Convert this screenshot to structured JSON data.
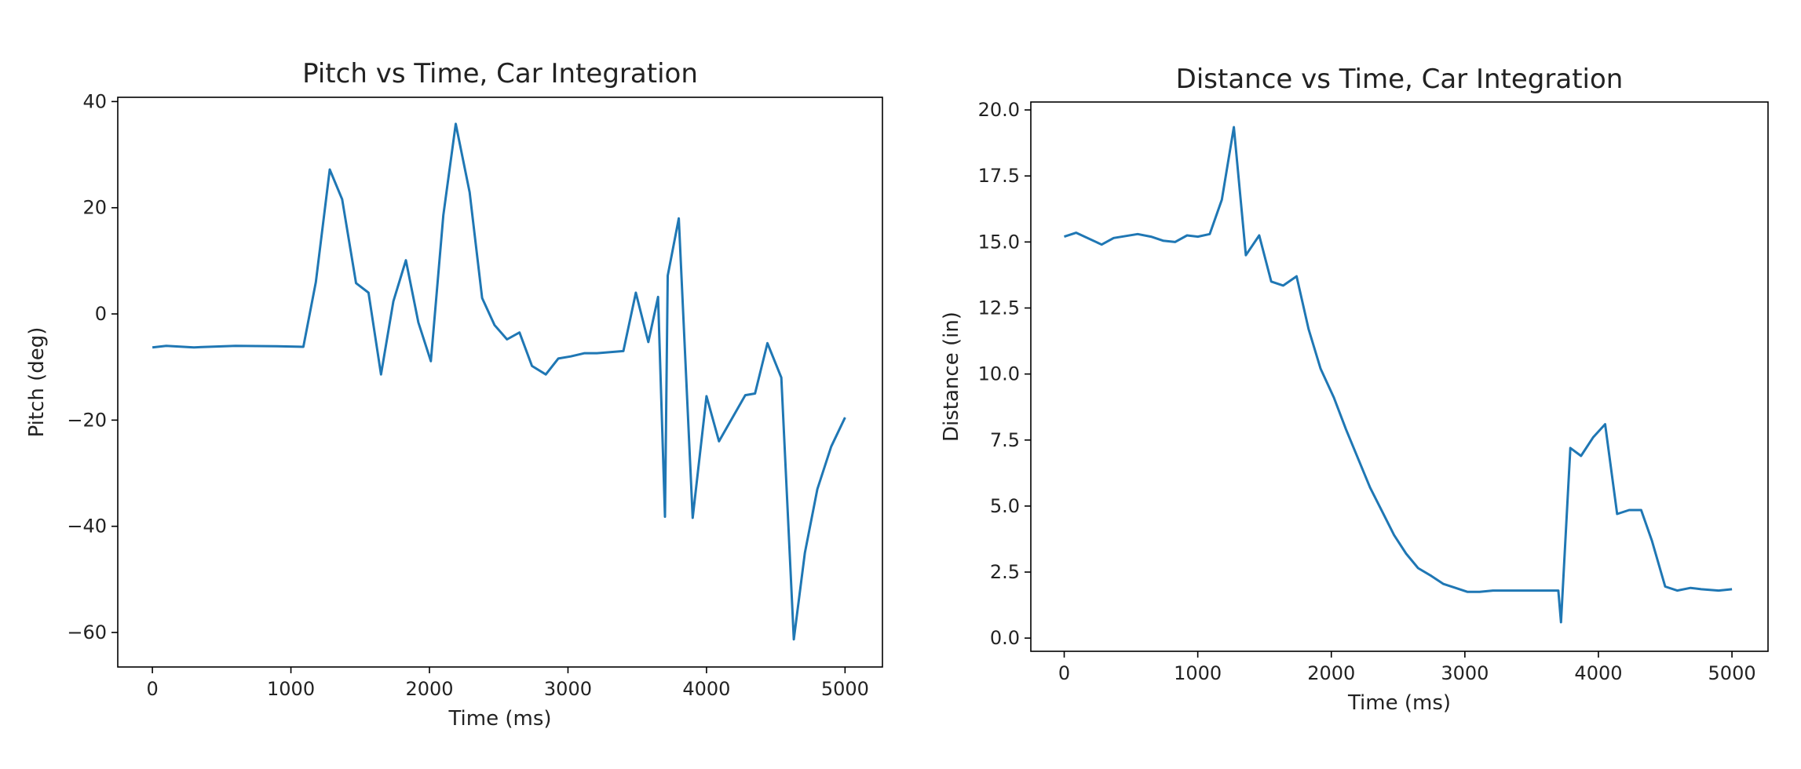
{
  "chart_data": [
    {
      "type": "line",
      "title": "Pitch vs Time, Car Integration",
      "xlabel": "Time (ms)",
      "ylabel": "Pitch (deg)",
      "xlim": [
        -250,
        5270
      ],
      "ylim": [
        -66.5,
        40.8
      ],
      "xticks": [
        0,
        1000,
        2000,
        3000,
        4000,
        5000
      ],
      "yticks": [
        -60,
        -40,
        -20,
        0,
        20,
        40
      ],
      "xtick_labels": [
        "0",
        "1000",
        "2000",
        "3000",
        "4000",
        "5000"
      ],
      "ytick_labels": [
        "−60",
        "−40",
        "−20",
        "0",
        "20",
        "40"
      ],
      "series": [
        {
          "color": "#1f77b4",
          "x": [
            0,
            100,
            300,
            600,
            900,
            1090,
            1180,
            1280,
            1370,
            1470,
            1560,
            1650,
            1740,
            1830,
            1920,
            2010,
            2100,
            2190,
            2290,
            2380,
            2470,
            2560,
            2650,
            2740,
            2840,
            2930,
            3020,
            3120,
            3210,
            3400,
            3490,
            3580,
            3650,
            3700,
            3720,
            3800,
            3900,
            4000,
            4090,
            4280,
            4350,
            4440,
            4540,
            4630,
            4710,
            4800,
            4900,
            5000
          ],
          "y": [
            -6.3,
            -6,
            -6.3,
            -6,
            -6.1,
            -6.2,
            6,
            27.2,
            21.6,
            5.8,
            4,
            -11.4,
            2.4,
            10.1,
            -1.6,
            -8.9,
            18.6,
            35.8,
            22.9,
            3,
            -2.1,
            -4.8,
            -3.5,
            -9.8,
            -11.4,
            -8.4,
            -8,
            -7.4,
            -7.4,
            -7,
            4,
            -5.3,
            3.2,
            -38.2,
            7.2,
            18,
            -38.4,
            -15.5,
            -24,
            -15.3,
            -15,
            -5.5,
            -12,
            -61.3,
            -45,
            -33,
            -25,
            -19.5
          ]
        }
      ]
    },
    {
      "type": "line",
      "title": "Distance vs Time, Car Integration",
      "xlabel": "Time (ms)",
      "ylabel": "Distance (in)",
      "xlim": [
        -250,
        5270
      ],
      "ylim": [
        -0.5,
        20.3
      ],
      "xticks": [
        0,
        1000,
        2000,
        3000,
        4000,
        5000
      ],
      "yticks": [
        0,
        2.5,
        5,
        7.5,
        10,
        12.5,
        15,
        17.5,
        20
      ],
      "xtick_labels": [
        "0",
        "1000",
        "2000",
        "3000",
        "4000",
        "5000"
      ],
      "ytick_labels": [
        "0.0",
        "2.5",
        "5.0",
        "7.5",
        "10.0",
        "12.5",
        "15.0",
        "17.5",
        "20.0"
      ],
      "series": [
        {
          "color": "#1f77b4",
          "x": [
            0,
            90,
            280,
            370,
            550,
            650,
            740,
            830,
            920,
            1000,
            1090,
            1180,
            1270,
            1360,
            1460,
            1550,
            1640,
            1740,
            1830,
            1920,
            2020,
            2110,
            2200,
            2290,
            2380,
            2470,
            2560,
            2650,
            2750,
            2840,
            2930,
            3020,
            3110,
            3210,
            3300,
            3700,
            3720,
            3790,
            3870,
            3960,
            4050,
            4140,
            4230,
            4320,
            4400,
            4500,
            4590,
            4690,
            4770,
            4900,
            5000
          ],
          "y": [
            15.2,
            15.35,
            14.9,
            15.15,
            15.3,
            15.2,
            15.05,
            15,
            15.25,
            15.2,
            15.3,
            16.6,
            19.35,
            14.5,
            15.25,
            13.5,
            13.35,
            13.7,
            11.7,
            10.2,
            9.1,
            7.9,
            6.8,
            5.7,
            4.8,
            3.9,
            3.2,
            2.65,
            2.35,
            2.05,
            1.9,
            1.75,
            1.75,
            1.8,
            1.8,
            1.8,
            0.6,
            7.2,
            6.9,
            7.6,
            8.1,
            4.7,
            4.85,
            4.85,
            3.7,
            1.95,
            1.8,
            1.9,
            1.85,
            1.8,
            1.85
          ]
        }
      ]
    }
  ]
}
